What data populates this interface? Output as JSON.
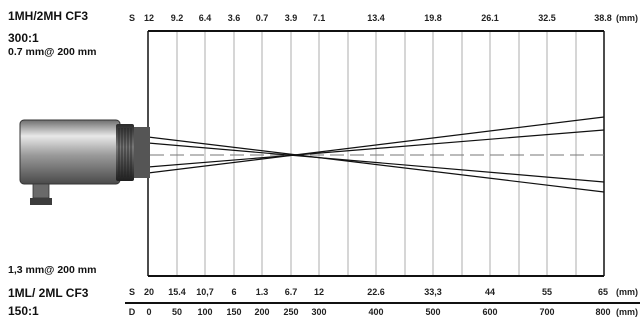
{
  "top_model": {
    "name": "1MH/2MH CF3",
    "ratio": "300:1",
    "spot_note": "0.7 mm@ 200 mm"
  },
  "bottom_model": {
    "name": "1ML/ 2ML CF3",
    "ratio": "150:1",
    "spot_note": "1,3 mm@ 200 mm"
  },
  "top_scale": {
    "prefix": "S",
    "ticks": [
      "12",
      "9.2",
      "6.4",
      "3.6",
      "0.7",
      "3.9",
      "7.1",
      "13.4",
      "19.8",
      "26.1",
      "32.5",
      "38.8"
    ],
    "unit": "(mm)"
  },
  "bottom_scale": {
    "prefix": "S",
    "ticks": [
      "20",
      "15.4",
      "10,7",
      "6",
      "1.3",
      "6.7",
      "12",
      "22.6",
      "33,3",
      "44",
      "55",
      "65"
    ],
    "unit": "(mm)"
  },
  "distance_scale": {
    "prefix": "D",
    "ticks": [
      "0",
      "50",
      "100",
      "150",
      "200",
      "250",
      "300",
      "400",
      "500",
      "600",
      "700",
      "800"
    ],
    "unit": "(mm)"
  },
  "colors": {
    "line": "#111111",
    "grid": "#9a9a9a",
    "sensor_body": "#b8b8b8",
    "sensor_ring": "#3a3a3a"
  }
}
